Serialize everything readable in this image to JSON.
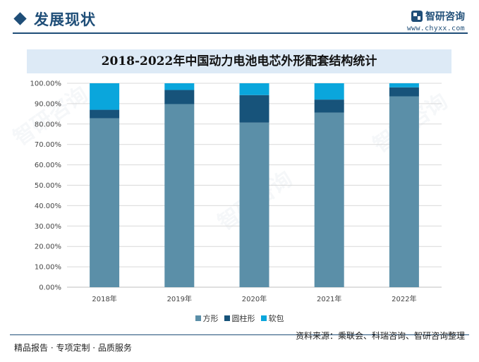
{
  "header": {
    "title": "发展现状",
    "logo_name": "智研咨询",
    "logo_url": "www.chyxx.com"
  },
  "chart_data": {
    "type": "bar",
    "stacked": true,
    "title": "2018-2022年中国动力电池电芯外形配套结构统计",
    "xlabel": "",
    "ylabel": "",
    "categories": [
      "2018年",
      "2019年",
      "2020年",
      "2021年",
      "2022年"
    ],
    "series": [
      {
        "name": "方形",
        "color": "#5b8fa8",
        "values": [
          82.8,
          89.8,
          80.7,
          85.6,
          93.6
        ]
      },
      {
        "name": "圆柱形",
        "color": "#17537a",
        "values": [
          4.2,
          6.9,
          13.5,
          6.4,
          4.4
        ]
      },
      {
        "name": "软包",
        "color": "#0aa6dc",
        "values": [
          13.0,
          3.3,
          5.8,
          8.0,
          2.0
        ]
      }
    ],
    "ylim": [
      0,
      100
    ],
    "yticks": [
      "0.00%",
      "10.00%",
      "20.00%",
      "30.00%",
      "40.00%",
      "50.00%",
      "60.00%",
      "70.00%",
      "80.00%",
      "90.00%",
      "100.00%"
    ],
    "grid": true,
    "legend_position": "bottom"
  },
  "footer": {
    "source": "资料来源：乘联会、科瑞咨询、智研咨询整理",
    "tagline": "精品报告 · 专项定制 · 品质服务"
  }
}
